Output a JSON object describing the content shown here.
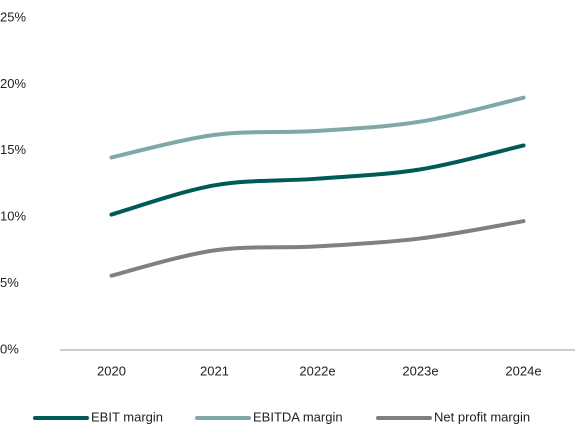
{
  "chart_data": {
    "type": "line",
    "categories": [
      "2020",
      "2021",
      "2022e",
      "2023e",
      "2024e"
    ],
    "series": [
      {
        "name": "EBIT margin",
        "color": "#005a55",
        "values": [
          10.2,
          12.4,
          12.9,
          13.6,
          15.4
        ]
      },
      {
        "name": "EBITDA margin",
        "color": "#7fa8a6",
        "values": [
          14.5,
          16.2,
          16.5,
          17.2,
          19.0
        ]
      },
      {
        "name": "Net profit margin",
        "color": "#808080",
        "values": [
          5.6,
          7.5,
          7.8,
          8.4,
          9.7
        ]
      }
    ],
    "ylim": [
      0,
      25
    ],
    "yticks": [
      {
        "value": 0,
        "label": "0%"
      },
      {
        "value": 5,
        "label": "5%"
      },
      {
        "value": 10,
        "label": "10%"
      },
      {
        "value": 15,
        "label": "15%"
      },
      {
        "value": 20,
        "label": "20%"
      },
      {
        "value": 25,
        "label": "25%"
      }
    ],
    "grid": false,
    "legend": "bottom"
  }
}
